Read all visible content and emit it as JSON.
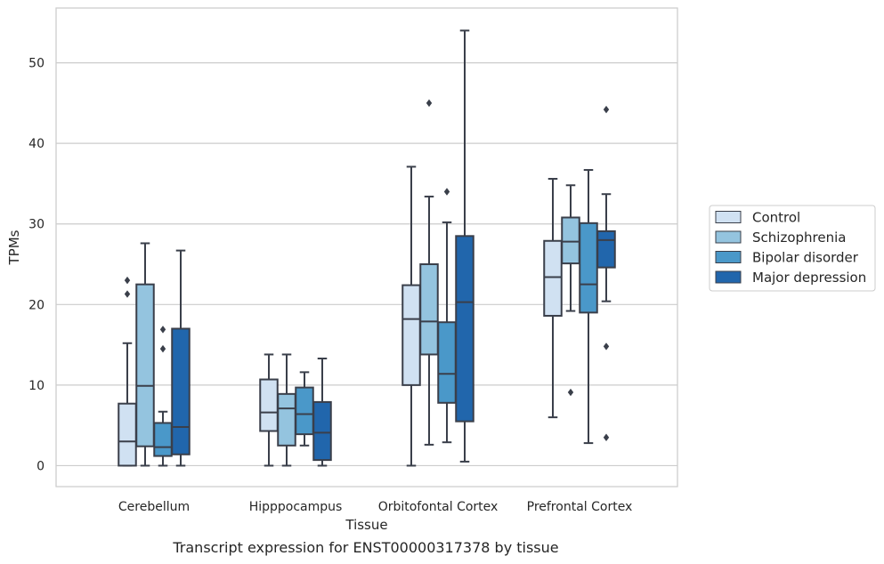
{
  "caption": "Transcript expression for ENST00000317378 by tissue",
  "chart_data": {
    "type": "box",
    "xlabel": "Tissue",
    "ylabel": "TPMs",
    "ylim": [
      -2.6,
      56.8
    ],
    "yticks": [
      0,
      10,
      20,
      30,
      40,
      50
    ],
    "grid": "horizontal",
    "legend_position": "right",
    "categories": [
      "Cerebellum",
      "Hipppocampus",
      "Orbitofontal Cortex",
      "Prefrontal Cortex"
    ],
    "series": [
      {
        "name": "Control",
        "color": "#d0e1f2",
        "boxes": [
          {
            "whisker_low": 0,
            "q1": 0,
            "median": 3.0,
            "q3": 7.7,
            "whisker_high": 15.2,
            "outliers": [
              21.3,
              23.0
            ]
          },
          {
            "whisker_low": 0,
            "q1": 4.3,
            "median": 6.6,
            "q3": 10.7,
            "whisker_high": 13.8,
            "outliers": []
          },
          {
            "whisker_low": 0,
            "q1": 10.0,
            "median": 18.2,
            "q3": 22.4,
            "whisker_high": 37.1,
            "outliers": []
          },
          {
            "whisker_low": 6.0,
            "q1": 18.6,
            "median": 23.4,
            "q3": 27.9,
            "whisker_high": 35.6,
            "outliers": []
          }
        ]
      },
      {
        "name": "Schizophrenia",
        "color": "#94c4df",
        "boxes": [
          {
            "whisker_low": 0,
            "q1": 2.4,
            "median": 9.9,
            "q3": 22.5,
            "whisker_high": 27.6,
            "outliers": []
          },
          {
            "whisker_low": 0,
            "q1": 2.5,
            "median": 7.1,
            "q3": 8.9,
            "whisker_high": 13.8,
            "outliers": []
          },
          {
            "whisker_low": 2.6,
            "q1": 13.8,
            "median": 17.9,
            "q3": 25.0,
            "whisker_high": 33.4,
            "outliers": [
              45.0
            ]
          },
          {
            "whisker_low": 19.2,
            "q1": 25.1,
            "median": 27.8,
            "q3": 30.8,
            "whisker_high": 34.8,
            "outliers": [
              9.1
            ]
          }
        ]
      },
      {
        "name": "Bipolar disorder",
        "color": "#4a98c9",
        "boxes": [
          {
            "whisker_low": 0,
            "q1": 1.2,
            "median": 2.3,
            "q3": 5.3,
            "whisker_high": 6.7,
            "outliers": [
              14.5,
              16.9
            ]
          },
          {
            "whisker_low": 2.5,
            "q1": 3.9,
            "median": 6.4,
            "q3": 9.7,
            "whisker_high": 11.6,
            "outliers": []
          },
          {
            "whisker_low": 2.9,
            "q1": 7.8,
            "median": 11.4,
            "q3": 17.8,
            "whisker_high": 30.2,
            "outliers": [
              34.0
            ]
          },
          {
            "whisker_low": 2.8,
            "q1": 19.0,
            "median": 22.5,
            "q3": 30.1,
            "whisker_high": 36.7,
            "outliers": []
          }
        ]
      },
      {
        "name": "Major depression",
        "color": "#2166ac",
        "boxes": [
          {
            "whisker_low": 0,
            "q1": 1.4,
            "median": 4.8,
            "q3": 17.0,
            "whisker_high": 26.7,
            "outliers": []
          },
          {
            "whisker_low": 0,
            "q1": 0.7,
            "median": 4.1,
            "q3": 7.9,
            "whisker_high": 13.3,
            "outliers": []
          },
          {
            "whisker_low": 0.5,
            "q1": 5.5,
            "median": 20.3,
            "q3": 28.5,
            "whisker_high": 54.0,
            "outliers": []
          },
          {
            "whisker_low": 20.4,
            "q1": 24.6,
            "median": 28.0,
            "q3": 29.1,
            "whisker_high": 33.7,
            "outliers": [
              3.5,
              14.8,
              44.2
            ]
          }
        ]
      }
    ]
  }
}
